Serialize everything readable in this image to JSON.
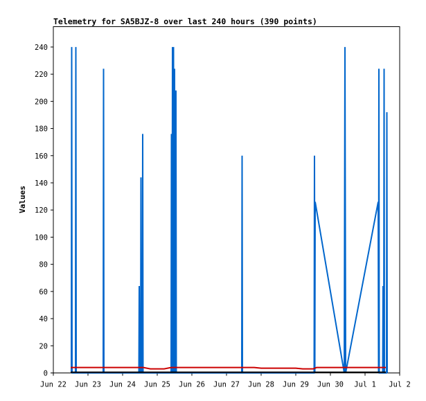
{
  "chart_data": {
    "type": "line",
    "title": "Telemetry for SA5BJZ-8 over last 240 hours (390 points)",
    "xlabel": "",
    "ylabel": "Values",
    "x_unit": "days",
    "xlim": [
      0,
      10
    ],
    "ylim": [
      0,
      255
    ],
    "y_ticks": [
      0,
      20,
      40,
      60,
      80,
      100,
      120,
      140,
      160,
      180,
      200,
      220,
      240
    ],
    "x_ticks": [
      {
        "x": 0,
        "label": "Jun 22"
      },
      {
        "x": 1,
        "label": "Jun 23"
      },
      {
        "x": 2,
        "label": "Jun 24"
      },
      {
        "x": 3,
        "label": "Jun 25"
      },
      {
        "x": 4,
        "label": "Jun 26"
      },
      {
        "x": 5,
        "label": "Jun 27"
      },
      {
        "x": 6,
        "label": "Jun 28"
      },
      {
        "x": 7,
        "label": "Jun 29"
      },
      {
        "x": 8,
        "label": "Jun 30"
      },
      {
        "x": 9,
        "label": "Jul 1"
      },
      {
        "x": 10,
        "label": "Jul 2"
      }
    ],
    "grid": false,
    "legend": "none",
    "series": [
      {
        "color": "#0066cc",
        "points": [
          [
            0.52,
            0
          ],
          [
            0.53,
            240
          ],
          [
            0.54,
            0
          ],
          [
            0.64,
            0
          ],
          [
            0.65,
            240
          ],
          [
            0.66,
            0
          ],
          [
            1.44,
            0
          ],
          [
            1.45,
            224
          ],
          [
            1.46,
            0
          ],
          [
            2.47,
            0
          ],
          [
            2.48,
            64
          ],
          [
            2.49,
            0
          ],
          [
            2.52,
            0
          ],
          [
            2.53,
            144
          ],
          [
            2.54,
            0
          ],
          [
            2.57,
            0
          ],
          [
            2.58,
            176
          ],
          [
            2.59,
            0
          ],
          [
            3.4,
            0
          ],
          [
            3.41,
            176
          ],
          [
            3.42,
            0
          ],
          [
            3.43,
            0
          ],
          [
            3.44,
            240
          ],
          [
            3.45,
            0
          ],
          [
            3.46,
            0
          ],
          [
            3.47,
            240
          ],
          [
            3.48,
            0
          ],
          [
            3.49,
            0
          ],
          [
            3.5,
            224
          ],
          [
            3.51,
            0
          ],
          [
            3.53,
            0
          ],
          [
            3.54,
            208
          ],
          [
            3.55,
            0
          ],
          [
            5.44,
            0
          ],
          [
            5.45,
            160
          ],
          [
            5.46,
            0
          ],
          [
            7.53,
            0
          ],
          [
            7.54,
            160
          ],
          [
            7.55,
            0
          ],
          [
            7.56,
            126
          ],
          [
            8.4,
            0
          ],
          [
            8.42,
            240
          ],
          [
            8.44,
            0
          ],
          [
            9.38,
            126
          ],
          [
            9.39,
            0
          ],
          [
            9.4,
            224
          ],
          [
            9.41,
            0
          ],
          [
            9.51,
            0
          ],
          [
            9.52,
            64
          ],
          [
            9.53,
            0
          ],
          [
            9.54,
            0
          ],
          [
            9.55,
            224
          ],
          [
            9.56,
            0
          ],
          [
            9.62,
            0
          ],
          [
            9.63,
            192
          ],
          [
            9.64,
            0
          ]
        ]
      },
      {
        "color": "#cc0000",
        "points": [
          [
            0.5,
            4
          ],
          [
            2.6,
            4
          ],
          [
            2.8,
            3
          ],
          [
            3.2,
            3
          ],
          [
            3.4,
            4
          ],
          [
            5.8,
            4
          ],
          [
            6.0,
            3.5
          ],
          [
            7.0,
            3.5
          ],
          [
            7.2,
            3
          ],
          [
            7.5,
            3
          ],
          [
            7.6,
            4
          ],
          [
            9.6,
            4
          ]
        ]
      },
      {
        "color": "#000000",
        "points": [
          [
            0.5,
            0.5
          ],
          [
            9.6,
            0.5
          ]
        ]
      }
    ]
  }
}
